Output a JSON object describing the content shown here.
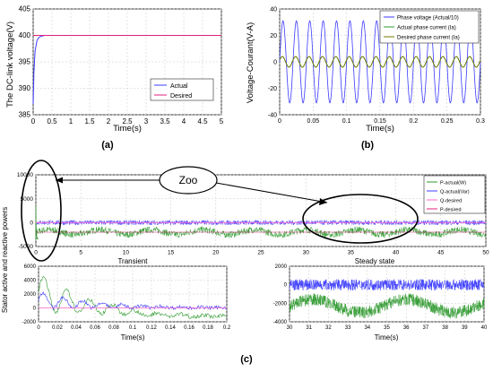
{
  "panel_labels": [
    "(a)",
    "(b)",
    "(c)"
  ],
  "callout": "Zoo",
  "colors": {
    "blue": "#3b3bff",
    "red": "#e0207f",
    "green": "#2f9a2f",
    "pink": "#ff66cc",
    "olive": "#7a7a00",
    "grid": "#c8c8c8"
  },
  "chart_data": [
    {
      "id": "a",
      "type": "line",
      "title": "",
      "xlabel": "Time(s)",
      "ylabel": "The DC-link voltage(V)",
      "xlim": [
        0,
        5
      ],
      "ylim": [
        385,
        405
      ],
      "xticks": [
        "0",
        "0.5",
        "1",
        "1.5",
        "2",
        "2.5",
        "3",
        "3.5",
        "4",
        "4.5",
        "5"
      ],
      "yticks": [
        "385",
        "390",
        "395",
        "400",
        "405"
      ],
      "legend_position": "right",
      "series": [
        {
          "name": "Actual",
          "color": "#3b3bff",
          "x": [
            0,
            0.02,
            0.05,
            0.1,
            0.15,
            0.2,
            0.3,
            0.5,
            5
          ],
          "y": [
            387,
            393,
            397,
            399,
            399.6,
            399.8,
            400,
            400,
            400
          ]
        },
        {
          "name": "Desired",
          "color": "#e0207f",
          "x": [
            0,
            5
          ],
          "y": [
            400,
            400
          ]
        }
      ]
    },
    {
      "id": "b",
      "type": "line",
      "title": "",
      "xlabel": "Time(s)",
      "ylabel": "Voltage-Courant(V-A)",
      "xlim": [
        0,
        0.3
      ],
      "ylim": [
        -40,
        40
      ],
      "xticks": [
        "0",
        "0.05",
        "0.1",
        "0.15",
        "0.2",
        "0.25",
        "0.3"
      ],
      "yticks": [
        "-40",
        "-20",
        "0",
        "20",
        "40"
      ],
      "legend_position": "top-right",
      "series": [
        {
          "name": "Phase voltage (Actual/10)",
          "color": "#3b3bff",
          "kind": "sine",
          "amplitude": 31,
          "frequency": 50
        },
        {
          "name": "Actual phase current (Ia)",
          "color": "#2f9a2f",
          "kind": "sine",
          "amplitude": 4,
          "frequency": 50
        },
        {
          "name": "Desired phase current (Ia)",
          "color": "#7a7a00",
          "kind": "sine",
          "amplitude": 4,
          "frequency": 50
        }
      ]
    },
    {
      "id": "c-main",
      "type": "line",
      "title": "",
      "xlabel": "",
      "ylabel": "Stator active and reactive powers",
      "xlim": [
        0,
        50
      ],
      "ylim": [
        -5000,
        10000
      ],
      "xticks": [
        "0",
        "5",
        "10",
        "15",
        "20",
        "25",
        "30",
        "35",
        "40",
        "45",
        "50"
      ],
      "yticks": [
        "-5000",
        "0",
        "5000",
        "10000"
      ],
      "legend_position": "right",
      "series": [
        {
          "name": "P-actual(W)",
          "color": "#2f9a2f",
          "kind": "noisy",
          "mean": -2000,
          "noise": 700
        },
        {
          "name": "Q-actual(Var)",
          "color": "#3b3bff",
          "kind": "noisy",
          "mean": 0,
          "noise": 500
        },
        {
          "name": "Q-desired",
          "color": "#ff66cc",
          "kind": "constant",
          "value": 0
        },
        {
          "name": "P-desired",
          "color": "#e0207f",
          "kind": "constant",
          "value": -2000
        }
      ]
    },
    {
      "id": "c-transient",
      "type": "line",
      "title": "Transient",
      "xlabel": "Time(s)",
      "ylabel": "",
      "xlim": [
        0,
        0.2
      ],
      "ylim": [
        -2000,
        6000
      ],
      "xticks": [
        "0",
        "0.02",
        "0.04",
        "0.06",
        "0.08",
        "0.1",
        "0.12",
        "0.14",
        "0.16",
        "0.18",
        "0.2"
      ],
      "yticks": [
        "-2000",
        "0",
        "2000",
        "4000",
        "6000"
      ],
      "series": [
        {
          "name": "P-actual(W)",
          "color": "#2f9a2f",
          "kind": "transient"
        },
        {
          "name": "Q-actual(Var)",
          "color": "#3b3bff",
          "kind": "transient"
        },
        {
          "name": "Q-desired",
          "color": "#ff66cc",
          "kind": "constant",
          "value": 0
        }
      ]
    },
    {
      "id": "c-steady",
      "type": "line",
      "title": "Steady state",
      "xlabel": "Time(s)",
      "ylabel": "",
      "xlim": [
        30,
        40
      ],
      "ylim": [
        -4000,
        2000
      ],
      "xticks": [
        "30",
        "31",
        "32",
        "33",
        "34",
        "35",
        "36",
        "37",
        "38",
        "39",
        "40"
      ],
      "yticks": [
        "-4000",
        "-2000",
        "0",
        "2000"
      ],
      "series": [
        {
          "name": "P-actual(W)",
          "color": "#2f9a2f",
          "kind": "noisy",
          "mean": -2200,
          "noise": 900
        },
        {
          "name": "Q-actual(Var)",
          "color": "#3b3bff",
          "kind": "noisy",
          "mean": 0,
          "noise": 600
        }
      ]
    }
  ]
}
